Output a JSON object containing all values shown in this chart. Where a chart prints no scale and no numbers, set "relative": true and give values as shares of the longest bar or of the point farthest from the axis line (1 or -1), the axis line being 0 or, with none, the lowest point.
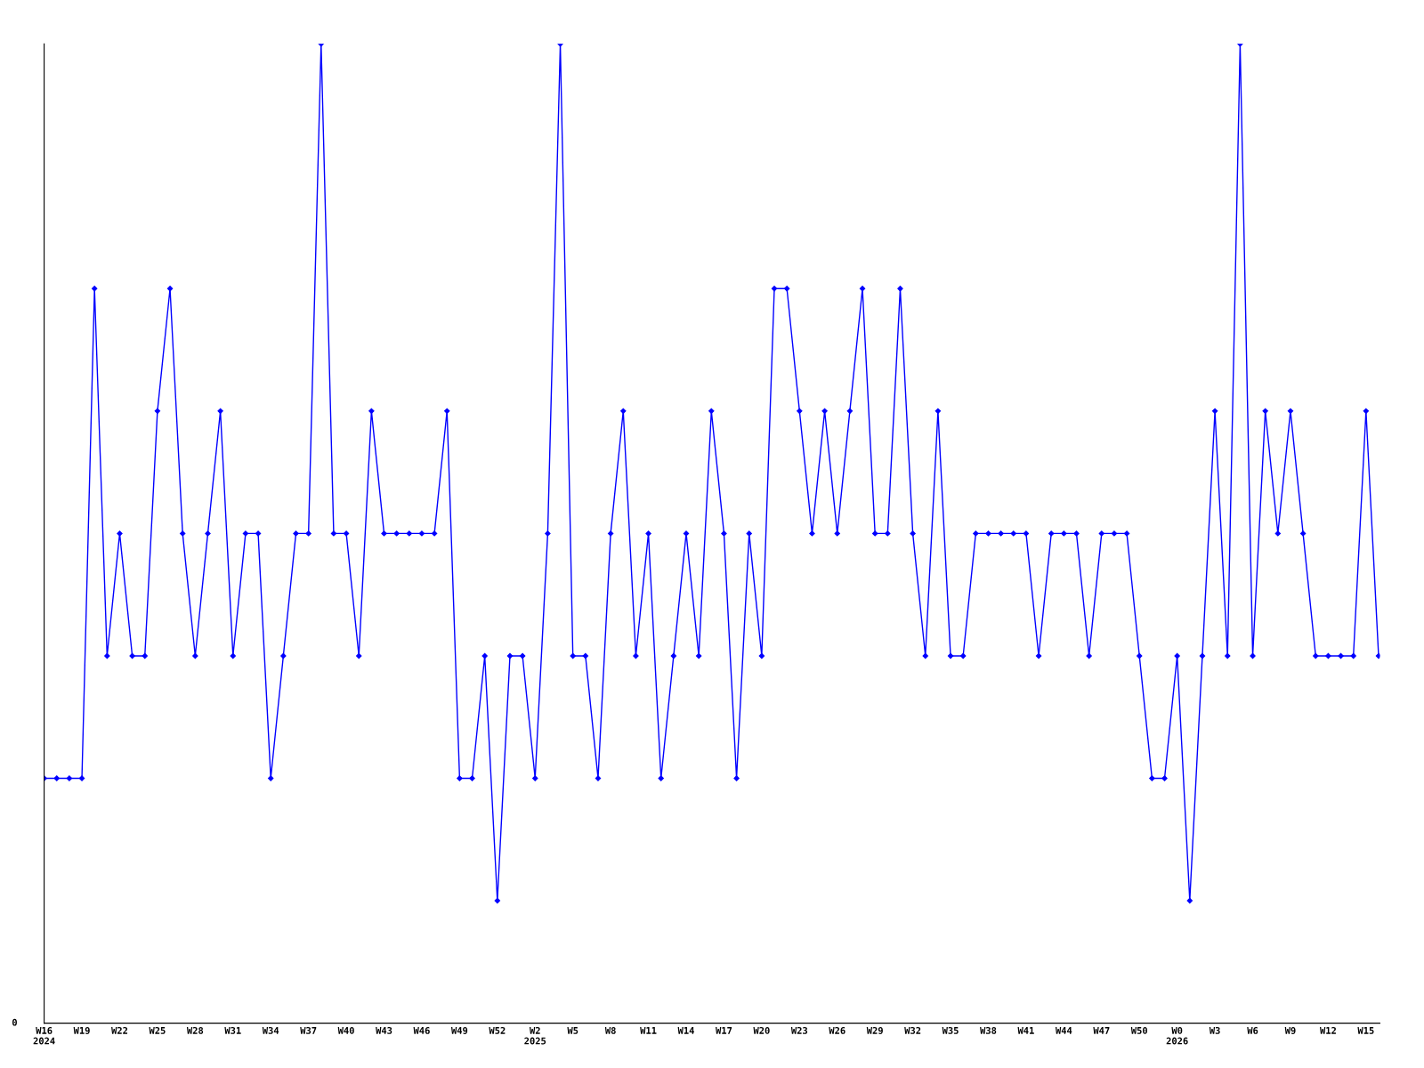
{
  "chart_data": {
    "type": "line",
    "relative": true,
    "marker": "diamond",
    "line_style": "solid",
    "grid": false,
    "legend": false,
    "annotations": [
      "0"
    ],
    "categories": [
      "W16\n2024",
      null,
      null,
      "W19",
      null,
      null,
      "W22",
      null,
      null,
      "W25",
      null,
      null,
      "W28",
      null,
      null,
      "W31",
      null,
      null,
      "W34",
      null,
      null,
      "W37",
      null,
      null,
      "W40",
      null,
      null,
      "W43",
      null,
      null,
      "W46",
      null,
      null,
      "W49",
      null,
      null,
      "W52",
      null,
      null,
      "W2\n2025",
      null,
      null,
      "W5",
      null,
      null,
      "W8",
      null,
      null,
      "W11",
      null,
      null,
      "W14",
      null,
      null,
      "W17",
      null,
      null,
      "W20",
      null,
      null,
      "W23",
      null,
      null,
      "W26",
      null,
      null,
      "W29",
      null,
      null,
      "W32",
      null,
      null,
      "W35",
      null,
      null,
      "W38",
      null,
      null,
      "W41",
      null,
      null,
      "W44",
      null,
      null,
      "W47",
      null,
      null,
      "W50",
      null,
      null,
      "W0\n2026",
      null,
      null,
      "W3",
      null,
      null,
      "W6",
      null,
      null,
      "W9",
      null,
      null,
      "W12",
      null,
      null,
      "W15",
      null
    ],
    "series": [
      {
        "color": "#0000ff",
        "values": [
          0.25,
          0.25,
          0.25,
          0.25,
          0.75,
          0.375,
          0.5,
          0.375,
          0.375,
          0.625,
          0.75,
          0.5,
          0.375,
          0.5,
          0.625,
          0.375,
          0.5,
          0.5,
          0.25,
          0.375,
          0.5,
          0.5,
          1,
          0.5,
          0.5,
          0.375,
          0.625,
          0.5,
          0.5,
          0.5,
          0.5,
          0.5,
          0.625,
          0.25,
          0.25,
          0.375,
          0.125,
          0.375,
          0.375,
          0.25,
          0.5,
          1,
          0.375,
          0.375,
          0.25,
          0.5,
          0.625,
          0.375,
          0.5,
          0.25,
          0.375,
          0.5,
          0.375,
          0.625,
          0.5,
          0.25,
          0.5,
          0.375,
          0.75,
          0.75,
          0.625,
          0.5,
          0.625,
          0.5,
          0.625,
          0.75,
          0.5,
          0.5,
          0.75,
          0.5,
          0.375,
          0.625,
          0.375,
          0.375,
          0.5,
          0.5,
          0.5,
          0.5,
          0.5,
          0.375,
          0.5,
          0.5,
          0.5,
          0.375,
          0.5,
          0.5,
          0.5,
          0.375,
          0.25,
          0.25,
          0.375,
          0.125,
          0.375,
          0.625,
          0.375,
          1,
          0.375,
          0.625,
          0.5,
          0.625,
          0.5,
          0.375,
          0.375,
          0.375,
          0.375,
          0.625,
          0.375
        ]
      }
    ]
  }
}
